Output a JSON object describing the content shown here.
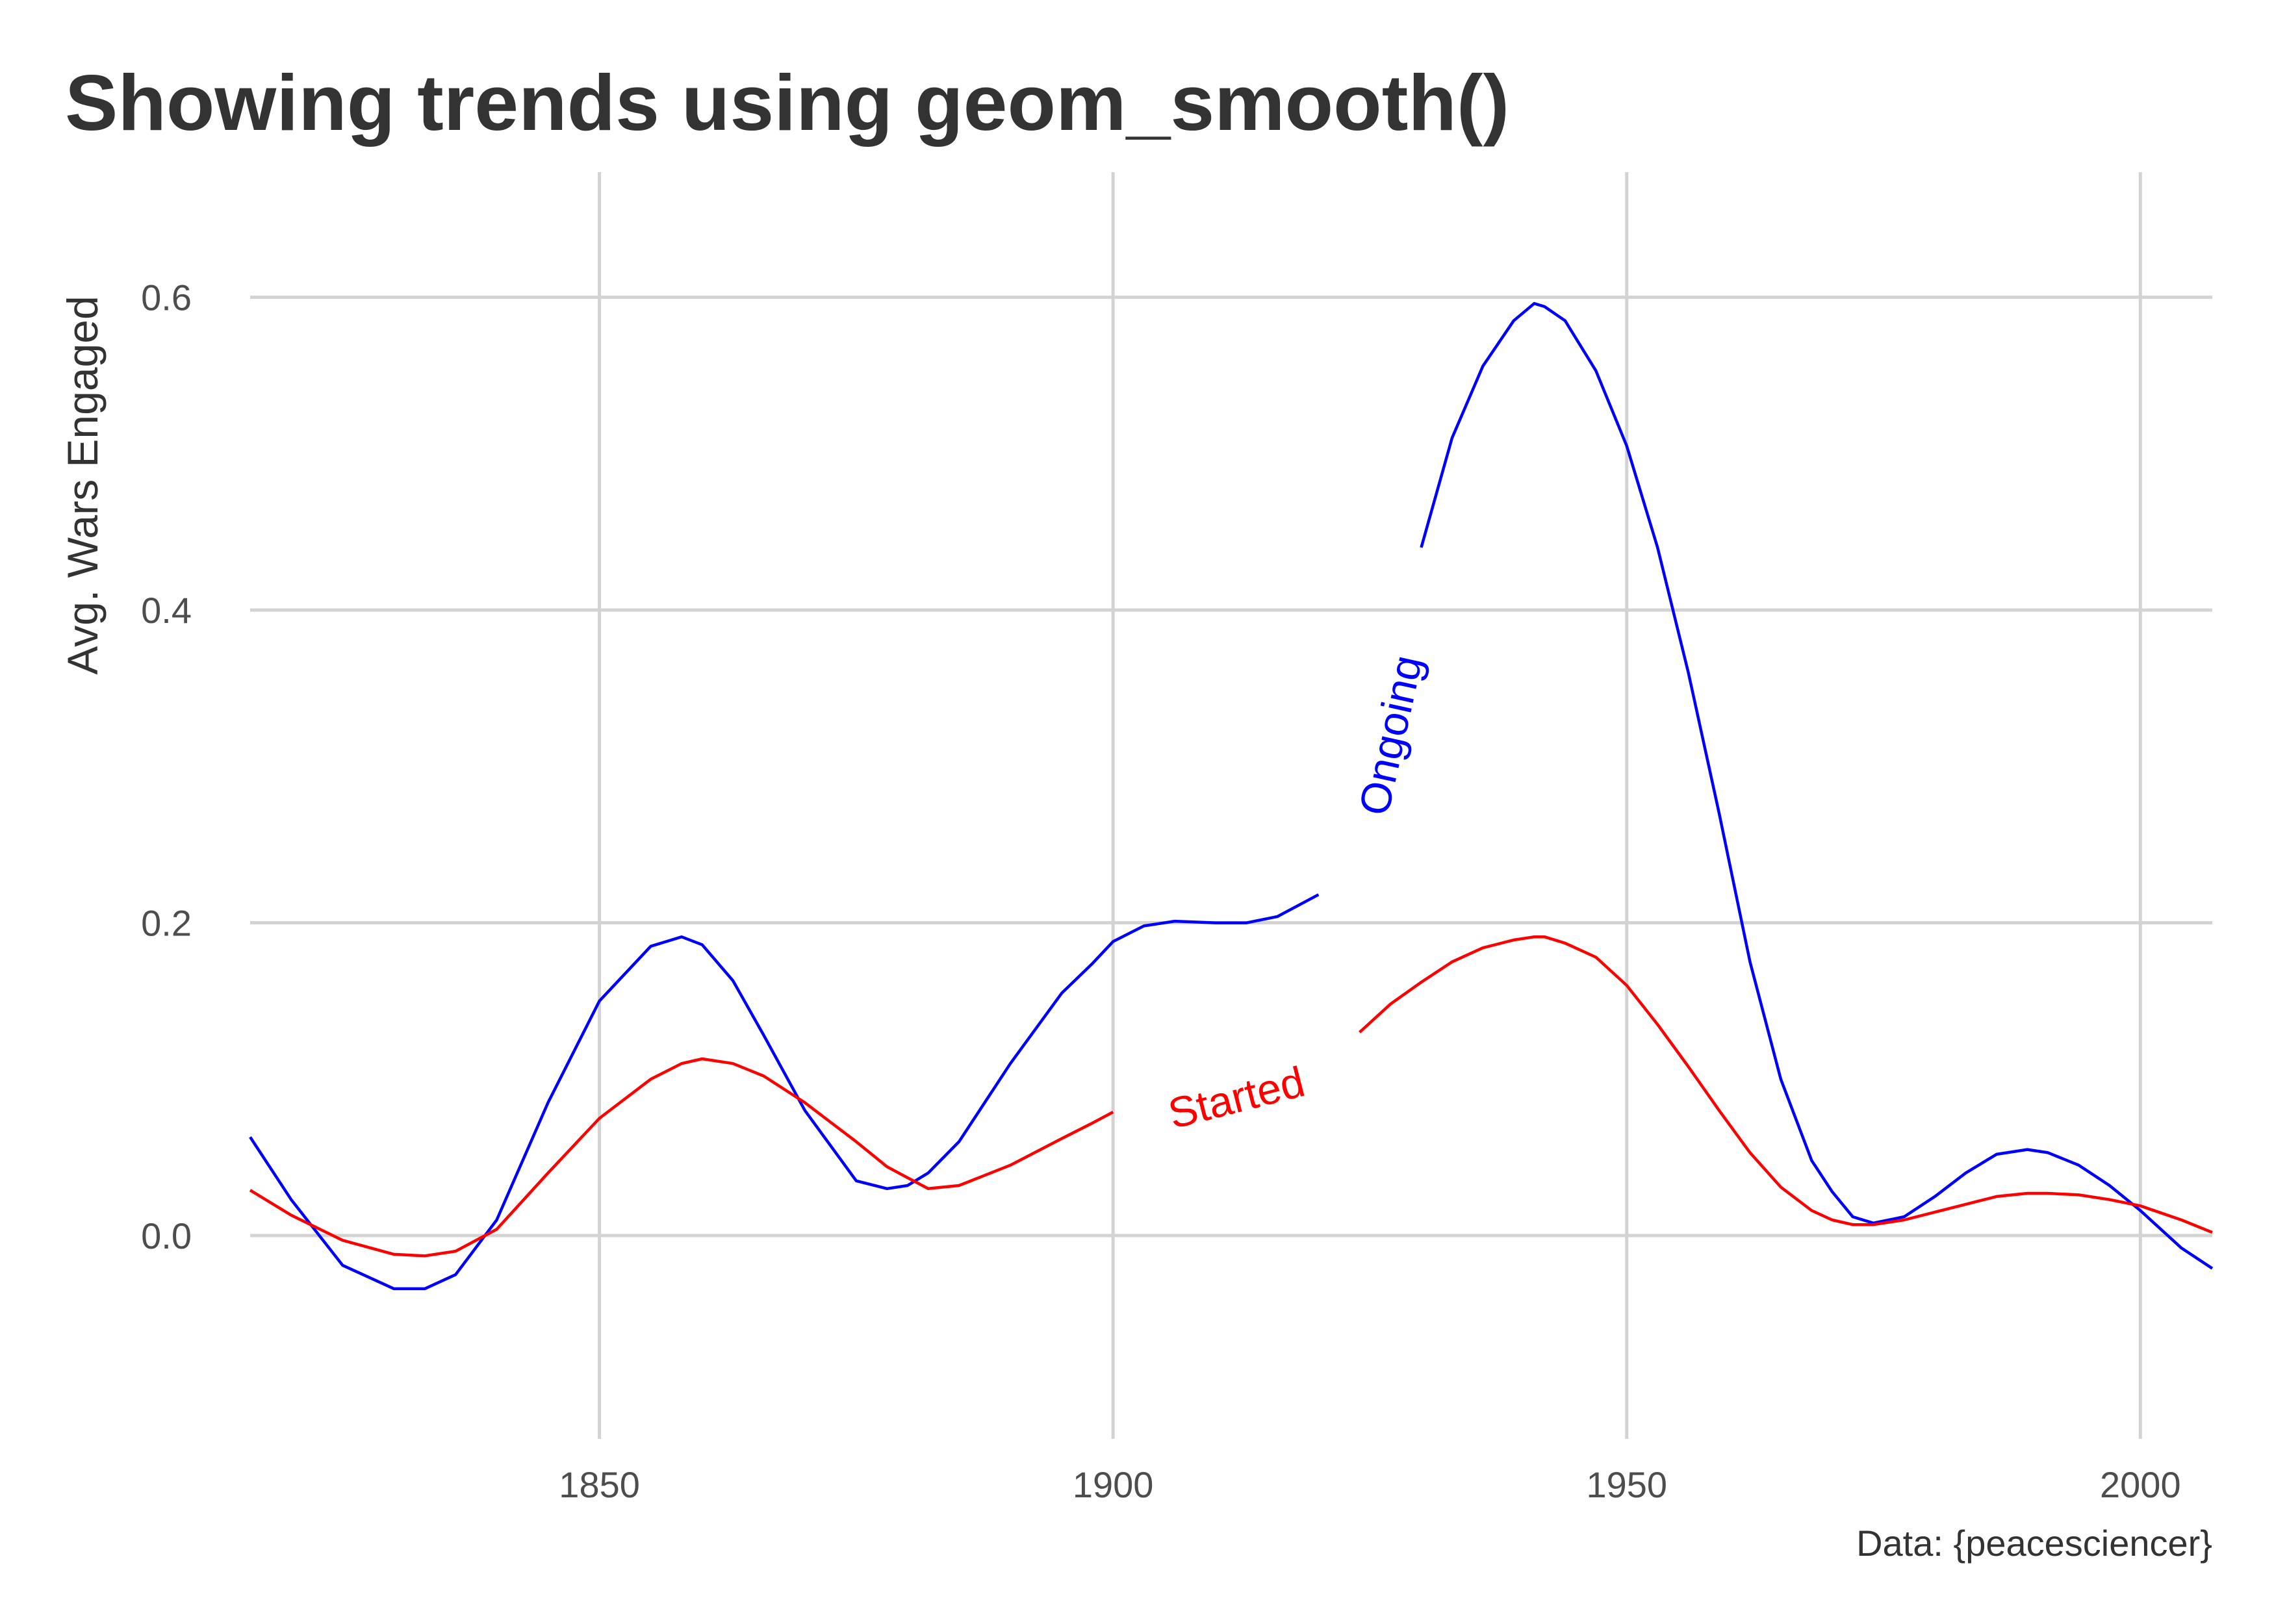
{
  "chart_data": {
    "type": "line",
    "title": "Showing trends using geom_smooth()",
    "xlabel": "",
    "ylabel": "Avg. Wars Engaged",
    "caption": "Data: {peacesciencer}",
    "xlim": [
      1816,
      2007
    ],
    "ylim": [
      -0.13,
      0.68
    ],
    "x_ticks": [
      1850,
      1900,
      1950,
      2000
    ],
    "y_ticks": [
      0.0,
      0.2,
      0.4,
      0.6
    ],
    "x_tick_labels": [
      "1850",
      "1900",
      "1950",
      "2000"
    ],
    "y_tick_labels": [
      "0.0",
      "0.2",
      "0.4",
      "0.6"
    ],
    "grid": true,
    "legend": "none",
    "series": [
      {
        "name": "Ongoing",
        "color": "#0000ff",
        "label_at": 1927,
        "x": [
          1816,
          1820,
          1825,
          1830,
          1833,
          1836,
          1840,
          1845,
          1850,
          1855,
          1858,
          1860,
          1863,
          1866,
          1870,
          1875,
          1878,
          1880,
          1882,
          1885,
          1890,
          1895,
          1898,
          1900,
          1903,
          1906,
          1910,
          1913,
          1916,
          1920,
          1924,
          1927,
          1930,
          1933,
          1936,
          1939,
          1941,
          1942,
          1944,
          1947,
          1950,
          1953,
          1956,
          1959,
          1962,
          1965,
          1968,
          1970,
          1972,
          1974,
          1977,
          1980,
          1983,
          1986,
          1989,
          1991,
          1994,
          1997,
          2000,
          2004,
          2007
        ],
        "y": [
          0.063,
          0.023,
          -0.019,
          -0.034,
          -0.034,
          -0.025,
          0.01,
          0.085,
          0.15,
          0.185,
          0.191,
          0.186,
          0.163,
          0.128,
          0.08,
          0.035,
          0.03,
          0.032,
          0.04,
          0.06,
          0.11,
          0.155,
          0.174,
          0.188,
          0.198,
          0.201,
          0.2,
          0.2,
          0.204,
          0.218,
          0.262,
          0.32,
          0.44,
          0.51,
          0.556,
          0.585,
          0.596,
          0.594,
          0.585,
          0.553,
          0.505,
          0.44,
          0.36,
          0.27,
          0.175,
          0.1,
          0.048,
          0.028,
          0.012,
          0.008,
          0.012,
          0.025,
          0.04,
          0.052,
          0.055,
          0.053,
          0.045,
          0.032,
          0.016,
          -0.008,
          -0.021
        ]
      },
      {
        "name": "Started",
        "color": "#ff0000",
        "label_at": 1912,
        "x": [
          1816,
          1820,
          1825,
          1830,
          1833,
          1836,
          1840,
          1845,
          1850,
          1855,
          1858,
          1860,
          1863,
          1866,
          1870,
          1875,
          1878,
          1880,
          1882,
          1885,
          1890,
          1895,
          1898,
          1900,
          1903,
          1906,
          1910,
          1913,
          1916,
          1920,
          1924,
          1927,
          1930,
          1933,
          1936,
          1939,
          1941,
          1942,
          1944,
          1947,
          1950,
          1953,
          1956,
          1959,
          1962,
          1965,
          1968,
          1970,
          1972,
          1974,
          1977,
          1980,
          1983,
          1986,
          1989,
          1991,
          1994,
          1997,
          2000,
          2004,
          2007
        ],
        "y": [
          0.029,
          0.013,
          -0.003,
          -0.012,
          -0.013,
          -0.01,
          0.004,
          0.04,
          0.075,
          0.1,
          0.11,
          0.113,
          0.11,
          0.102,
          0.085,
          0.06,
          0.044,
          0.037,
          0.03,
          0.032,
          0.045,
          0.062,
          0.072,
          0.079,
          0.084,
          0.085,
          0.085,
          0.09,
          0.097,
          0.11,
          0.13,
          0.148,
          0.162,
          0.175,
          0.184,
          0.189,
          0.191,
          0.191,
          0.187,
          0.178,
          0.16,
          0.135,
          0.108,
          0.08,
          0.053,
          0.031,
          0.016,
          0.01,
          0.007,
          0.007,
          0.01,
          0.015,
          0.02,
          0.025,
          0.027,
          0.027,
          0.026,
          0.023,
          0.019,
          0.01,
          0.002
        ]
      }
    ]
  }
}
